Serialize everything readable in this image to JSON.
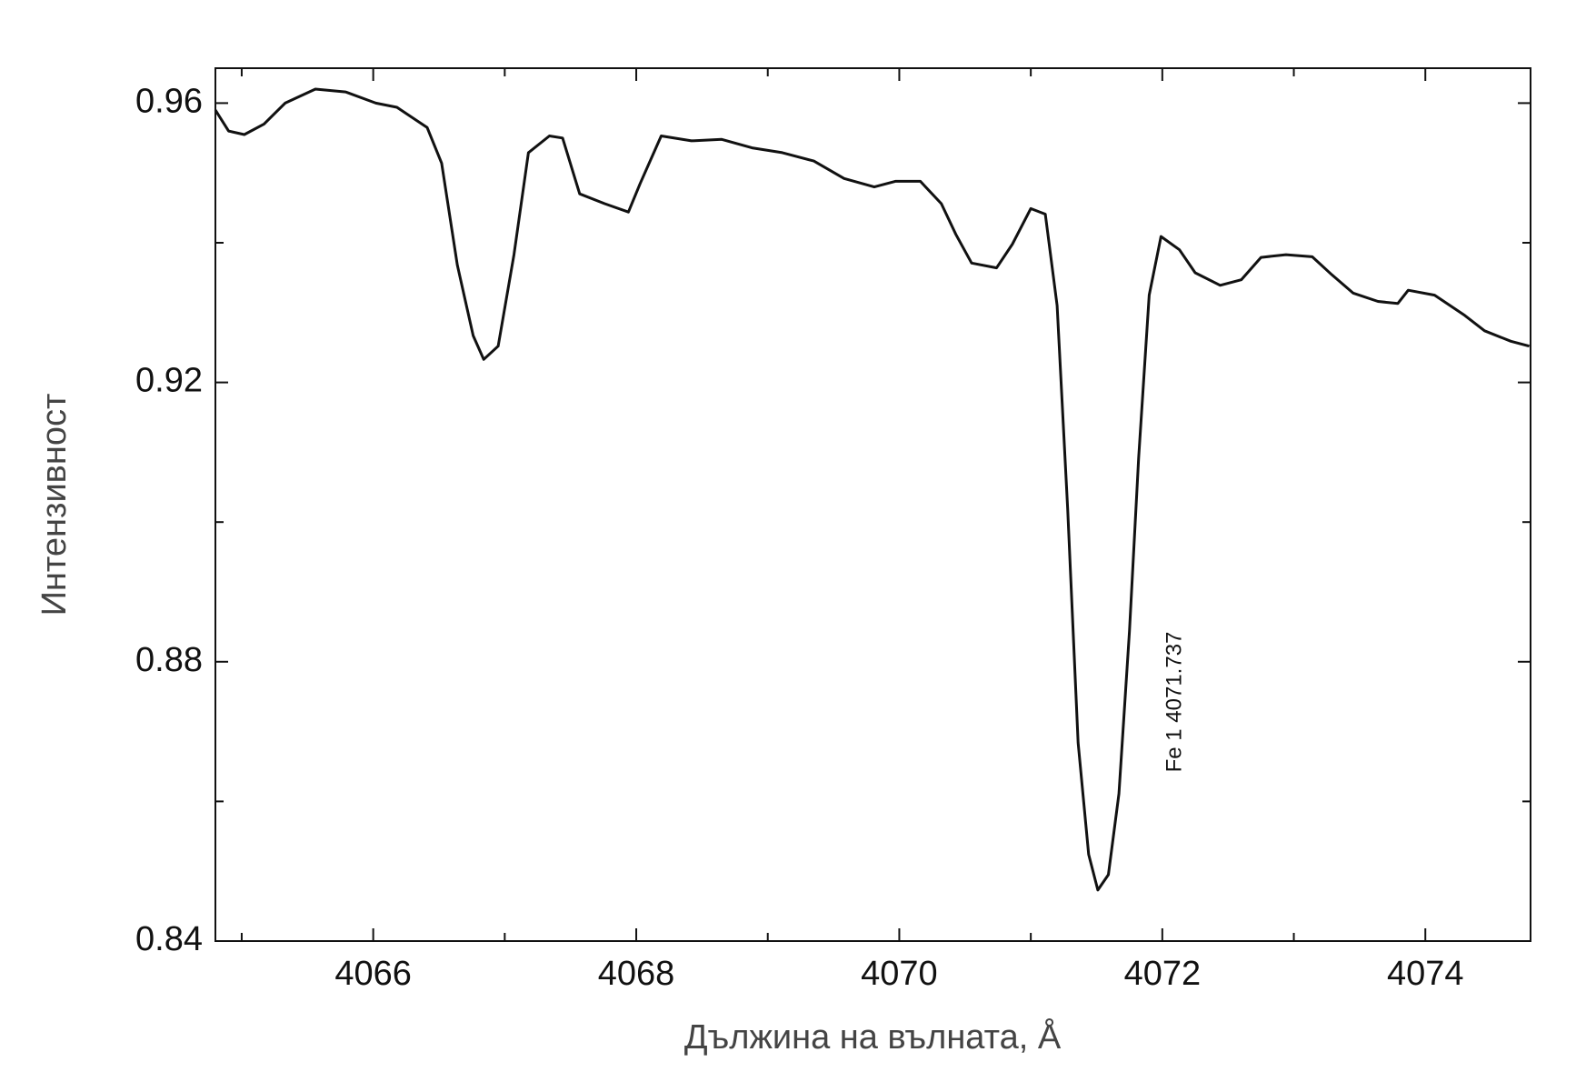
{
  "chart_data": {
    "type": "line",
    "x_label": "Дължина на вълната, Å",
    "y_label": "Интензивност",
    "annotation": "Fe 1 4071.737",
    "xlim": [
      4064.8,
      4074.8
    ],
    "ylim": [
      0.84,
      0.965
    ],
    "xticks": [
      4066,
      4068,
      4070,
      4072,
      4074
    ],
    "xminorticks": [
      4065,
      4067,
      4069,
      4071,
      4073
    ],
    "yticks": [
      0.84,
      0.88,
      0.92,
      0.96
    ],
    "yminorticks": [
      0.86,
      0.9,
      0.94
    ],
    "color": "#111111",
    "x": [
      4064.8,
      4064.9,
      4065.02,
      4065.17,
      4065.33,
      4065.56,
      4065.79,
      4066.02,
      4066.18,
      4066.41,
      4066.52,
      4066.64,
      4066.76,
      4066.84,
      4066.95,
      4067.07,
      4067.18,
      4067.34,
      4067.44,
      4067.57,
      4067.76,
      4067.94,
      4068.03,
      4068.19,
      4068.42,
      4068.65,
      4068.88,
      4069.11,
      4069.35,
      4069.58,
      4069.81,
      4069.97,
      4070.16,
      4070.32,
      4070.43,
      4070.55,
      4070.74,
      4070.86,
      4071.0,
      4071.11,
      4071.2,
      4071.28,
      4071.36,
      4071.44,
      4071.51,
      4071.59,
      4071.67,
      4071.75,
      4071.82,
      4071.9,
      4071.99,
      4072.13,
      4072.25,
      4072.44,
      4072.6,
      4072.75,
      4072.94,
      4073.14,
      4073.29,
      4073.45,
      4073.64,
      4073.79,
      4073.87,
      4074.07,
      4074.3,
      4074.45,
      4074.65,
      4074.79
    ],
    "values": [
      0.959,
      0.956,
      0.9555,
      0.957,
      0.96,
      0.962,
      0.9616,
      0.96,
      0.9594,
      0.9565,
      0.9514,
      0.9368,
      0.9267,
      0.9233,
      0.9252,
      0.9383,
      0.9529,
      0.9553,
      0.955,
      0.947,
      0.9456,
      0.9444,
      0.9485,
      0.9553,
      0.9546,
      0.9548,
      0.9536,
      0.9529,
      0.9517,
      0.9492,
      0.948,
      0.9488,
      0.9488,
      0.9456,
      0.9412,
      0.9371,
      0.9364,
      0.9398,
      0.9449,
      0.9441,
      0.931,
      0.9019,
      0.8684,
      0.8524,
      0.8473,
      0.8495,
      0.8611,
      0.8844,
      0.9092,
      0.9325,
      0.9409,
      0.939,
      0.9357,
      0.9339,
      0.9347,
      0.9379,
      0.9383,
      0.938,
      0.9354,
      0.9328,
      0.9316,
      0.9313,
      0.9332,
      0.9325,
      0.9296,
      0.9274,
      0.9259,
      0.9252
    ]
  }
}
